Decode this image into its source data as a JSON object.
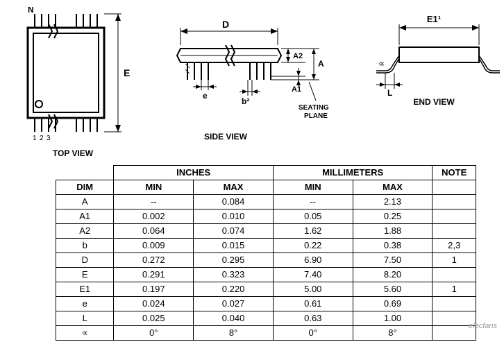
{
  "diagrams": {
    "top_view": {
      "label": "TOP VIEW",
      "dim_E": "E",
      "dim_N": "N",
      "pin_numbers": [
        "1",
        "2",
        "3"
      ],
      "stroke": "#000000",
      "fill": "#ffffff",
      "font_size": 12
    },
    "side_view": {
      "label": "SIDE VIEW",
      "dim_D": "D",
      "dim_e": "e",
      "dim_b2": "b²",
      "dim_A": "A",
      "dim_A1": "A1",
      "dim_A2": "A2",
      "seating": "SEATING\nPLANE",
      "stroke": "#000000",
      "font_size": 12
    },
    "end_view": {
      "label": "END VIEW",
      "dim_E1": "E1¹",
      "dim_L": "L",
      "dim_alpha": "∝",
      "stroke": "#000000",
      "font_size": 12
    }
  },
  "table": {
    "header_inches": "INCHES",
    "header_mm": "MILLIMETERS",
    "header_note": "NOTE",
    "header_dim": "DIM",
    "header_min": "MIN",
    "header_max": "MAX",
    "font_size": 13,
    "border_color": "#000000",
    "rows": [
      {
        "dim": "A",
        "in_min": "--",
        "in_max": "0.084",
        "mm_min": "--",
        "mm_max": "2.13",
        "note": ""
      },
      {
        "dim": "A1",
        "in_min": "0.002",
        "in_max": "0.010",
        "mm_min": "0.05",
        "mm_max": "0.25",
        "note": ""
      },
      {
        "dim": "A2",
        "in_min": "0.064",
        "in_max": "0.074",
        "mm_min": "1.62",
        "mm_max": "1.88",
        "note": ""
      },
      {
        "dim": "b",
        "in_min": "0.009",
        "in_max": "0.015",
        "mm_min": "0.22",
        "mm_max": "0.38",
        "note": "2,3"
      },
      {
        "dim": "D",
        "in_min": "0.272",
        "in_max": "0.295",
        "mm_min": "6.90",
        "mm_max": "7.50",
        "note": "1"
      },
      {
        "dim": "E",
        "in_min": "0.291",
        "in_max": "0.323",
        "mm_min": "7.40",
        "mm_max": "8.20",
        "note": ""
      },
      {
        "dim": "E1",
        "in_min": "0.197",
        "in_max": "0.220",
        "mm_min": "5.00",
        "mm_max": "5.60",
        "note": "1"
      },
      {
        "dim": "e",
        "in_min": "0.024",
        "in_max": "0.027",
        "mm_min": "0.61",
        "mm_max": "0.69",
        "note": ""
      },
      {
        "dim": "L",
        "in_min": "0.025",
        "in_max": "0.040",
        "mm_min": "0.63",
        "mm_max": "1.00",
        "note": ""
      },
      {
        "dim": "∝",
        "in_min": "0°",
        "in_max": "8°",
        "mm_min": "0°",
        "mm_max": "8°",
        "note": ""
      }
    ]
  },
  "watermark": "elecfans"
}
